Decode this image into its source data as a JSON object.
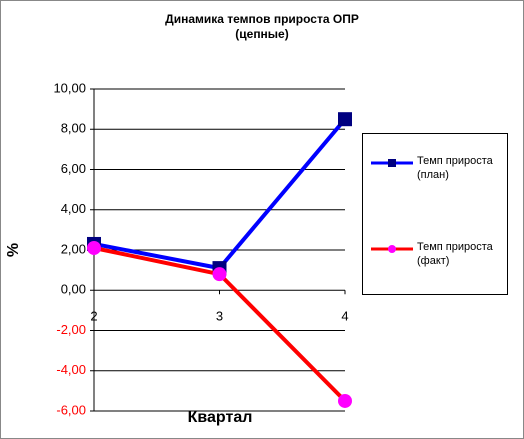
{
  "chart_data": {
    "type": "line",
    "title": "Динамика темпов прироста ОПР",
    "subtitle": "(цепные)",
    "x_label": "Квартал",
    "y_label": "%",
    "categories": [
      "2",
      "3",
      "4"
    ],
    "series": [
      {
        "name": "Темп прироста (план)",
        "color": "#0000ff",
        "marker": "square",
        "marker_color": "#000080",
        "values": [
          2.3,
          1.1,
          8.5
        ]
      },
      {
        "name": "Темп прироста (факт)",
        "color": "#ff0000",
        "marker": "circle",
        "marker_color": "#ff00ff",
        "values": [
          2.1,
          0.8,
          -5.5
        ]
      }
    ],
    "ylim": [
      -6,
      10
    ],
    "yticks": [
      {
        "value": -6,
        "label": "-6,00"
      },
      {
        "value": -4,
        "label": "-4,00"
      },
      {
        "value": -2,
        "label": "-2,00"
      },
      {
        "value": 0,
        "label": "0,00"
      },
      {
        "value": 2,
        "label": "2,00"
      },
      {
        "value": 4,
        "label": "4,00"
      },
      {
        "value": 6,
        "label": "6,00"
      },
      {
        "value": 8,
        "label": "8,00"
      },
      {
        "value": 10,
        "label": "10,00"
      }
    ],
    "negative_tick_color": "#ff0000",
    "grid": true,
    "legend": "right"
  }
}
